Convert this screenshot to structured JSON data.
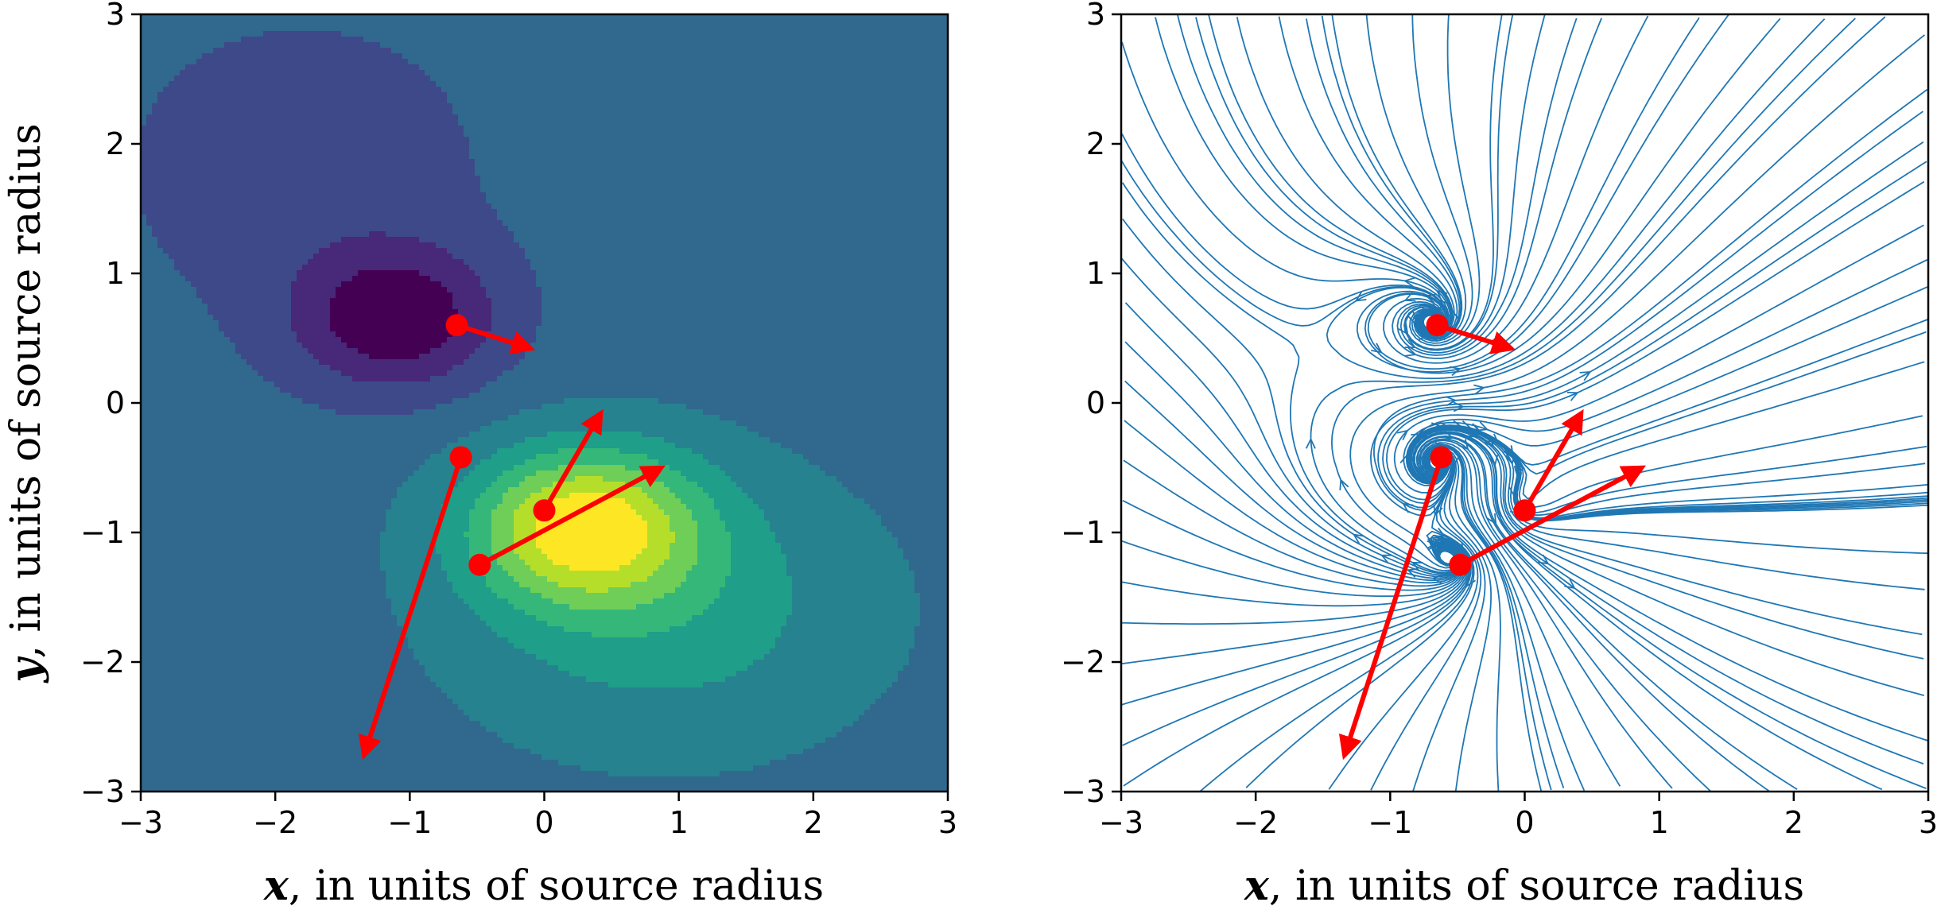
{
  "chart_data": [
    {
      "type": "heatmap",
      "title": "",
      "xlabel_var": "x",
      "ylabel_var": "y",
      "xlabel_rest": ", in units of source radius",
      "ylabel_rest": ", in units of source radius",
      "xlim": [
        -3,
        3
      ],
      "ylim": [
        -3,
        3
      ],
      "xticks": [
        -3,
        -2,
        -1,
        0,
        1,
        2,
        3
      ],
      "yticks": [
        -3,
        -2,
        -1,
        0,
        1,
        2,
        3
      ],
      "colormap": [
        "#440154",
        "#482878",
        "#3e4989",
        "#31688e",
        "#26828e",
        "#1f9e89",
        "#35b779",
        "#6ece58",
        "#b5de2b",
        "#fde725"
      ],
      "field": {
        "background": 0.35,
        "components": [
          {
            "x": -1.1,
            "y": 0.65,
            "amplitude": -0.32,
            "sx": 0.75,
            "sy": 0.55
          },
          {
            "x": -1.8,
            "y": 1.8,
            "amplitude": -0.1,
            "sx": 1.5,
            "sy": 1.3
          },
          {
            "x": 0.3,
            "y": -0.95,
            "amplitude": 0.55,
            "sx": 0.85,
            "sy": 0.6
          },
          {
            "x": 0.9,
            "y": -1.6,
            "amplitude": 0.2,
            "sx": 1.6,
            "sy": 1.1
          },
          {
            "x": 2.4,
            "y": 1.9,
            "amplitude": 0.05,
            "sx": 1.2,
            "sy": 1.2
          }
        ]
      },
      "series": [
        {
          "x": -0.65,
          "y": 0.6,
          "u": 0.55,
          "v": -0.18,
          "color": "#ff0000"
        },
        {
          "x": -0.62,
          "y": -0.42,
          "u": -0.72,
          "v": -2.3,
          "color": "#ff0000"
        },
        {
          "x": 0.0,
          "y": -0.83,
          "u": 0.42,
          "v": 0.75,
          "color": "#ff0000"
        },
        {
          "x": -0.48,
          "y": -1.25,
          "u": 1.35,
          "v": 0.75,
          "color": "#ff0000"
        }
      ]
    },
    {
      "type": "streamplot",
      "title": "",
      "xlabel_var": "x",
      "xlabel_rest": ", in units of source radius",
      "xlim": [
        -3,
        3
      ],
      "ylim": [
        -3,
        3
      ],
      "xticks": [
        -3,
        -2,
        -1,
        0,
        1,
        2,
        3
      ],
      "yticks": [
        -3,
        -2,
        -1,
        0,
        1,
        2,
        3
      ],
      "stream_color": "#1f77b4",
      "series": [
        {
          "x": -0.65,
          "y": 0.6,
          "u": 0.55,
          "v": -0.18,
          "color": "#ff0000"
        },
        {
          "x": -0.62,
          "y": -0.42,
          "u": -0.72,
          "v": -2.3,
          "color": "#ff0000"
        },
        {
          "x": 0.0,
          "y": -0.83,
          "u": 0.42,
          "v": 0.75,
          "color": "#ff0000"
        },
        {
          "x": -0.48,
          "y": -1.25,
          "u": 1.35,
          "v": 0.75,
          "color": "#ff0000"
        }
      ]
    }
  ]
}
